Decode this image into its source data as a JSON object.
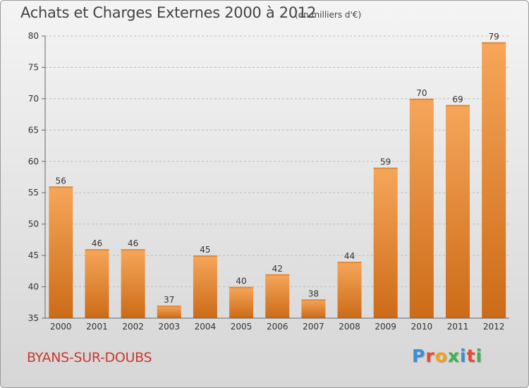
{
  "title": "Achats et Charges Externes 2000 à 2012",
  "unit": "(en milliers d'€)",
  "commune": "BYANS-SUR-DOUBS",
  "logo": "Proxiti",
  "colors": {
    "bar_light": "#f6a65a",
    "bar_dark": "#cc6b17",
    "commune_text": "#c83a2e"
  },
  "chart_data": {
    "type": "bar",
    "categories": [
      "2000",
      "2001",
      "2002",
      "2003",
      "2004",
      "2005",
      "2006",
      "2007",
      "2008",
      "2009",
      "2010",
      "2011",
      "2012"
    ],
    "values": [
      56,
      46,
      46,
      37,
      45,
      40,
      42,
      38,
      44,
      59,
      70,
      69,
      79
    ],
    "ylim": [
      35,
      80
    ],
    "yticks": [
      35,
      40,
      45,
      50,
      55,
      60,
      65,
      70,
      75,
      80
    ],
    "grid": true,
    "xlabel": "",
    "ylabel": ""
  }
}
